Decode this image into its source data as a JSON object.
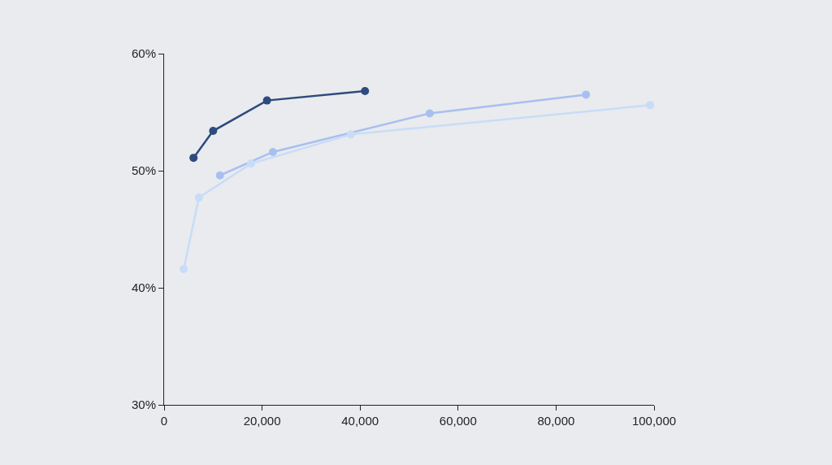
{
  "chart_data": {
    "type": "line",
    "marker": "circle",
    "xlim": [
      0,
      100000
    ],
    "ylim": [
      30,
      60
    ],
    "xticks": [
      0,
      {
        "value": 20000,
        "label": "20,000"
      },
      {
        "value": 40000,
        "label": "40,000"
      },
      {
        "value": 60000,
        "label": "60,000"
      },
      {
        "value": 80000,
        "label": "80,000"
      },
      {
        "value": 100000,
        "label": "100,000"
      }
    ],
    "yticks": [
      {
        "value": 30,
        "label": "30%"
      },
      {
        "value": 40,
        "label": "40%"
      },
      {
        "value": 50,
        "label": "50%"
      },
      {
        "value": 60,
        "label": "60%"
      }
    ],
    "series": [
      {
        "color": "#2e4a7e",
        "x": [
          6000,
          10000,
          21000,
          41000
        ],
        "values": [
          51.1,
          53.4,
          56.0,
          56.8
        ]
      },
      {
        "color": "#a9bff0",
        "x": [
          11400,
          22200,
          54200,
          86100
        ],
        "values": [
          49.6,
          51.6,
          54.9,
          56.5
        ]
      },
      {
        "color": "#c9dcf7",
        "x": [
          4000,
          7100,
          17700,
          38100,
          99200
        ],
        "values": [
          41.6,
          47.7,
          50.6,
          53.1,
          55.6
        ]
      }
    ]
  }
}
